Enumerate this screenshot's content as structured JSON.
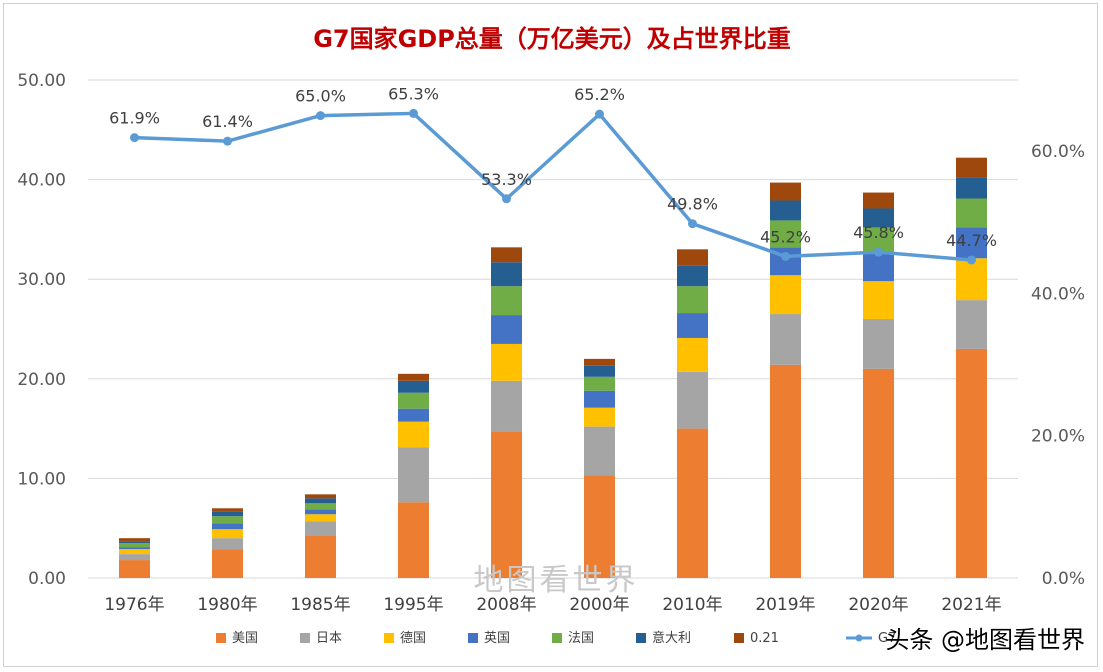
{
  "chart_data": {
    "type": "bar",
    "title": "G7国家GDP总量（万亿美元）及占世界比重",
    "categories": [
      "1976年",
      "1980年",
      "1985年",
      "1995年",
      "2008年",
      "2000年",
      "2010年",
      "2019年",
      "2020年",
      "2021年"
    ],
    "series": [
      {
        "name": "美国",
        "color": "#ed7d31",
        "values": [
          1.8,
          2.9,
          4.3,
          7.6,
          14.7,
          10.3,
          15.0,
          21.4,
          21.0,
          23.0
        ]
      },
      {
        "name": "日本",
        "color": "#a5a5a5",
        "values": [
          0.6,
          1.1,
          1.4,
          5.5,
          5.1,
          4.9,
          5.7,
          5.1,
          5.0,
          4.9
        ]
      },
      {
        "name": "德国",
        "color": "#ffc000",
        "values": [
          0.5,
          0.9,
          0.7,
          2.6,
          3.7,
          1.9,
          3.4,
          3.9,
          3.8,
          4.2
        ]
      },
      {
        "name": "英国",
        "color": "#4472c4",
        "values": [
          0.2,
          0.6,
          0.5,
          1.3,
          2.9,
          1.7,
          2.5,
          2.8,
          2.8,
          3.1
        ]
      },
      {
        "name": "法国",
        "color": "#70ad47",
        "values": [
          0.4,
          0.7,
          0.6,
          1.6,
          2.9,
          1.4,
          2.7,
          2.7,
          2.6,
          2.9
        ]
      },
      {
        "name": "意大利",
        "color": "#255e91",
        "values": [
          0.2,
          0.5,
          0.5,
          1.2,
          2.4,
          1.1,
          2.1,
          2.0,
          1.9,
          2.1
        ]
      },
      {
        "name": "0.21",
        "color": "#9e480e",
        "values": [
          0.3,
          0.3,
          0.4,
          0.7,
          1.5,
          0.7,
          1.6,
          1.8,
          1.6,
          2.0
        ]
      }
    ],
    "line_series": {
      "name": "G7",
      "color": "#5b9bd5",
      "values": [
        61.9,
        61.4,
        65.0,
        65.3,
        53.3,
        65.2,
        49.8,
        45.2,
        45.8,
        44.7
      ],
      "labels": [
        "61.9%",
        "61.4%",
        "65.0%",
        "65.3%",
        "53.3%",
        "65.2%",
        "49.8%",
        "45.2%",
        "45.8%",
        "44.7%"
      ]
    },
    "y_left": {
      "ylim": [
        0,
        50
      ],
      "ticks": [
        "0.00",
        "10.00",
        "20.00",
        "30.00",
        "40.00",
        "50.00"
      ]
    },
    "y_right": {
      "ylim": [
        0,
        70
      ],
      "ticks": [
        "0.0%",
        "20.0%",
        "40.0%",
        "60.0%"
      ],
      "tick_values": [
        0,
        20,
        40,
        60
      ]
    },
    "grid": true,
    "legend_position": "bottom",
    "legend_labels": [
      "美国",
      "日本",
      "德国",
      "英国",
      "法国",
      "意大利",
      "0.21",
      "G7"
    ]
  },
  "watermark": "地图看世界",
  "corner_mark": "头条 @地图看世界"
}
